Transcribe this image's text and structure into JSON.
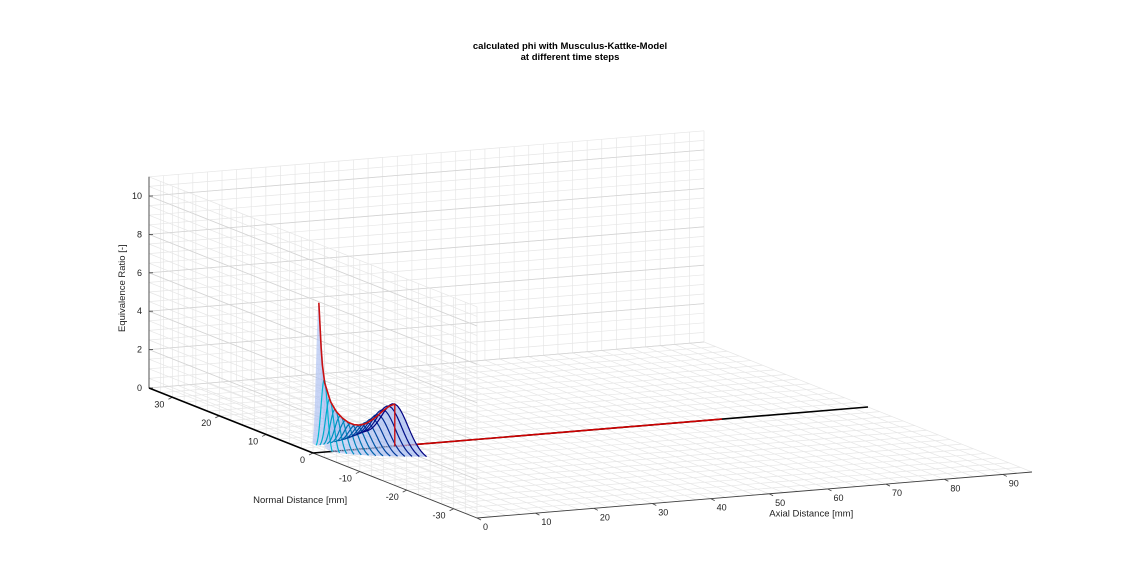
{
  "chart_data": {
    "type": "surface3d",
    "title": [
      "calculated phi with Musculus-Kattke-Model",
      "at different time steps"
    ],
    "xlabel": "Axial Distance [mm]",
    "ylabel": "Normal Distance [mm]",
    "zlabel": "Equivalence Ratio [-]",
    "xlim": [
      0,
      95
    ],
    "ylim": [
      -35,
      35
    ],
    "zlim": [
      0,
      11
    ],
    "xticks": [
      "0",
      "10",
      "20",
      "30",
      "40",
      "50",
      "60",
      "70",
      "80",
      "90"
    ],
    "yticks": [
      "-30",
      "-20",
      "-10",
      "0",
      "10",
      "20",
      "30"
    ],
    "zticks": [
      "0",
      "2",
      "4",
      "6",
      "8",
      "10"
    ],
    "grid": true,
    "centerline_phi": {
      "axial_mm": [
        1,
        1.5,
        2,
        3,
        4,
        5,
        6,
        7,
        8,
        9,
        10,
        11,
        12,
        13,
        14
      ],
      "phi": [
        7.8,
        4.8,
        3.6,
        2.6,
        2.05,
        1.7,
        1.45,
        1.3,
        1.25,
        1.3,
        1.45,
        1.65,
        1.9,
        2.1,
        2.2
      ]
    },
    "spray_boundary_lines": [
      {
        "name": "",
        "from": [
          0,
          0
        ],
        "to": [
          95,
          0
        ],
        "color": "#000000"
      },
      {
        "name": "",
        "from": [
          0,
          0
        ],
        "to": [
          0,
          35
        ],
        "color": "#000000"
      },
      {
        "name": "",
        "from": [
          14,
          0
        ],
        "to": [
          70,
          0
        ],
        "color": "#cc0000"
      }
    ],
    "colors": {
      "centerline": "#cc1111",
      "surface": "#9fb6ef",
      "contours_low": "#00c8d8",
      "contours_high": "#000080"
    }
  }
}
